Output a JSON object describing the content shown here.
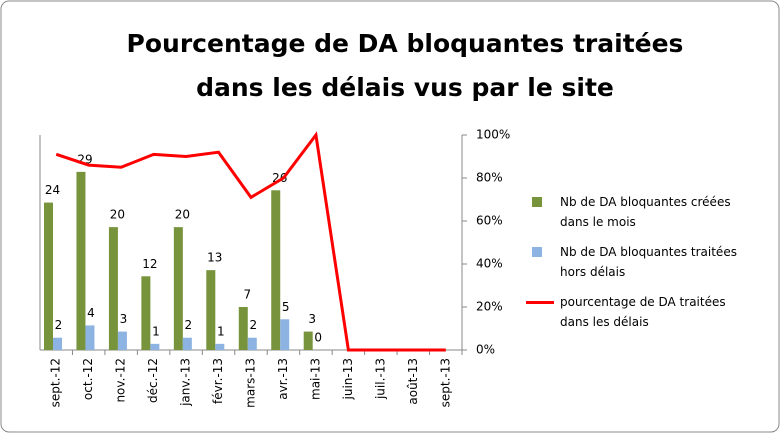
{
  "chart_data": {
    "type": "bar",
    "title": "Pourcentage de DA bloquantes traitées dans les délais vus par le site",
    "categories": [
      "sept.-12",
      "oct.-12",
      "nov.-12",
      "déc.-12",
      "janv.-13",
      "févr.-13",
      "mars-13",
      "avr.-13",
      "mai-13",
      "juin-13",
      "juil.-13",
      "août-13",
      "sept.-13"
    ],
    "series": [
      {
        "name": "Nb de DA bloquantes créées dans le mois",
        "color": "#77933c",
        "type": "bar",
        "values": [
          24,
          29,
          20,
          12,
          20,
          13,
          7,
          26,
          3,
          null,
          null,
          null,
          null
        ]
      },
      {
        "name": "Nb de DA bloquantes traitées hors délais",
        "color": "#8db3e2",
        "type": "bar",
        "values": [
          2,
          4,
          3,
          1,
          2,
          1,
          2,
          5,
          0,
          null,
          null,
          null,
          null
        ]
      },
      {
        "name": "pourcentage de DA traitées dans les délais",
        "color": "#ff0000",
        "type": "line",
        "axis": "y2",
        "values": [
          91,
          86,
          85,
          91,
          90,
          92,
          71,
          80,
          100,
          0,
          0,
          0,
          0
        ]
      }
    ],
    "ylim": [
      0,
      35
    ],
    "y2lim": [
      0,
      100
    ],
    "y2ticks": [
      {
        "value": 0,
        "label": "0%"
      },
      {
        "value": 20,
        "label": "20%"
      },
      {
        "value": 40,
        "label": "40%"
      },
      {
        "value": 60,
        "label": "60%"
      },
      {
        "value": 80,
        "label": "80%"
      },
      {
        "value": 100,
        "label": "100%"
      }
    ]
  }
}
